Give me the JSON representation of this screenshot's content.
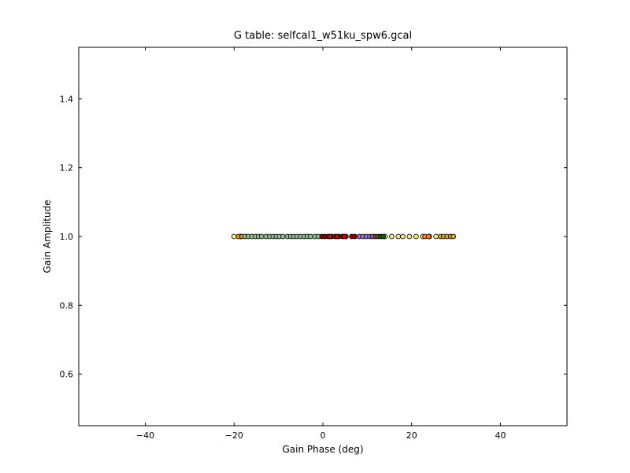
{
  "chart_data": {
    "type": "scatter",
    "title": "G table: selfcal1_w51ku_spw6.gcal",
    "xlabel": "Gain Phase (deg)",
    "ylabel": "Gain Amplitude",
    "xlim": [
      -55,
      55
    ],
    "ylim": [
      0.45,
      1.55
    ],
    "xticks": [
      -40,
      -20,
      0,
      20,
      40
    ],
    "xtick_labels": [
      "−40",
      "−20",
      "0",
      "20",
      "40"
    ],
    "yticks": [
      0.6,
      0.8,
      1.0,
      1.2,
      1.4
    ],
    "ytick_labels": [
      "0.6",
      "0.8",
      "1.0",
      "1.2",
      "1.4"
    ],
    "grid": false,
    "series": [
      {
        "color": "#f0e68c",
        "points": [
          [
            -20.0,
            1.0
          ],
          [
            -18.5,
            1.0
          ],
          [
            14.0,
            1.0
          ],
          [
            15.5,
            1.0
          ],
          [
            17.0,
            1.0
          ],
          [
            18.0,
            1.0
          ],
          [
            19.5,
            1.0
          ],
          [
            21.0,
            1.0
          ],
          [
            22.5,
            1.0
          ],
          [
            24.0,
            1.0
          ],
          [
            25.5,
            1.0
          ]
        ]
      },
      {
        "color": "#ff8c00",
        "points": [
          [
            -19.0,
            1.0
          ],
          [
            -18.2,
            1.0
          ],
          [
            23.0,
            1.0
          ],
          [
            23.8,
            1.0
          ]
        ]
      },
      {
        "color": "#8fbc8f",
        "points": [
          [
            -17.5,
            1.0
          ],
          [
            -16.8,
            1.0
          ],
          [
            -16.0,
            1.0
          ],
          [
            -15.2,
            1.0
          ],
          [
            -14.5,
            1.0
          ],
          [
            -13.8,
            1.0
          ],
          [
            -12.8,
            1.0
          ],
          [
            -12.0,
            1.0
          ],
          [
            -11.2,
            1.0
          ],
          [
            -10.5,
            1.0
          ],
          [
            -9.8,
            1.0
          ],
          [
            -9.0,
            1.0
          ],
          [
            -8.0,
            1.0
          ],
          [
            -7.2,
            1.0
          ],
          [
            -6.5,
            1.0
          ],
          [
            -5.8,
            1.0
          ],
          [
            -5.0,
            1.0
          ],
          [
            -4.2,
            1.0
          ],
          [
            -3.5,
            1.0
          ],
          [
            -2.8,
            1.0
          ],
          [
            -1.8,
            1.0
          ],
          [
            -1.0,
            1.0
          ]
        ]
      },
      {
        "color": "#8b0000",
        "points": [
          [
            -0.2,
            1.0
          ],
          [
            0.5,
            1.0
          ],
          [
            1.2,
            1.0
          ],
          [
            2.0,
            1.0
          ],
          [
            2.8,
            1.0
          ],
          [
            3.6,
            1.0
          ],
          [
            4.4,
            1.0
          ],
          [
            5.2,
            1.0
          ],
          [
            6.5,
            1.0
          ],
          [
            7.2,
            1.0
          ]
        ]
      },
      {
        "color": "#cc0000",
        "points": [
          [
            1.6,
            1.0
          ],
          [
            3.2,
            1.0
          ],
          [
            4.8,
            1.0
          ]
        ]
      },
      {
        "color": "#9370db",
        "points": [
          [
            8.2,
            1.0
          ],
          [
            9.0,
            1.0
          ],
          [
            9.8,
            1.0
          ],
          [
            10.6,
            1.0
          ],
          [
            11.2,
            1.0
          ]
        ]
      },
      {
        "color": "#8b4513",
        "points": [
          [
            11.8,
            1.0
          ],
          [
            12.4,
            1.0
          ]
        ]
      },
      {
        "color": "#006400",
        "points": [
          [
            13.0,
            1.0
          ],
          [
            13.6,
            1.0
          ]
        ]
      },
      {
        "color": "#daa520",
        "points": [
          [
            26.5,
            1.0
          ],
          [
            27.2,
            1.0
          ],
          [
            28.0,
            1.0
          ],
          [
            28.8,
            1.0
          ],
          [
            29.4,
            1.0
          ]
        ]
      }
    ]
  }
}
